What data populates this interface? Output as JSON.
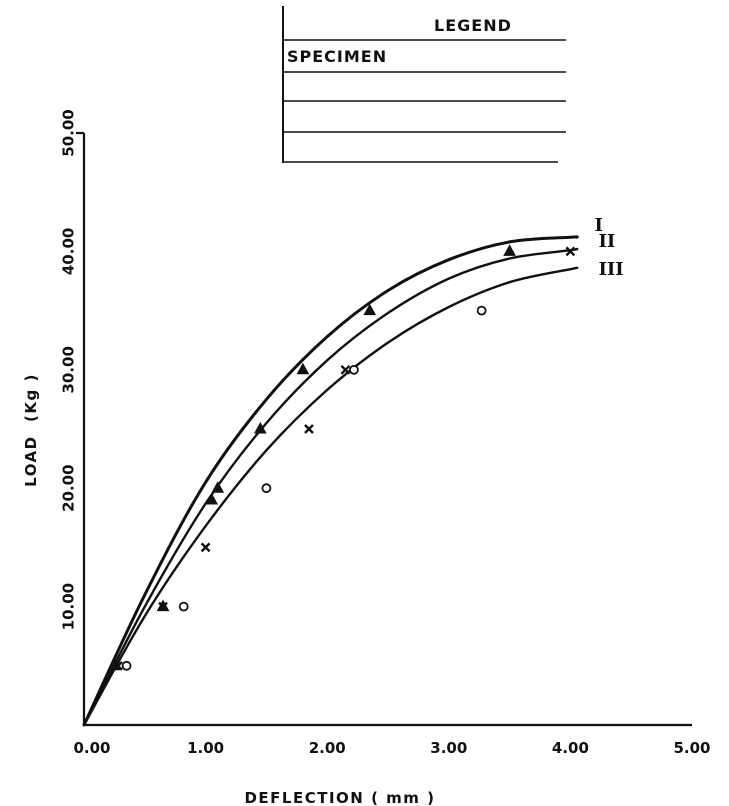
{
  "colors": {
    "ink": "#111111",
    "background": "#ffffff"
  },
  "chart_data": {
    "type": "line",
    "title": "",
    "xlabel": "DEFLECTION ( mm )",
    "ylabel": "LOAD  (Kg )",
    "xlim": [
      0,
      5
    ],
    "ylim": [
      0,
      50
    ],
    "x_ticks": [
      "0.00",
      "1.00",
      "2.00",
      "3.00",
      "4.00",
      "5.00"
    ],
    "y_ticks": [
      "10.00",
      "20.00",
      "30.00",
      "40.00",
      "50.00"
    ],
    "grid": false,
    "legend": {
      "placement": "top-center",
      "title": "LEGEND",
      "header": "SPECIMEN",
      "empty_rows": 3
    },
    "series": [
      {
        "name": "I",
        "marker": "triangle-filled",
        "curve": {
          "x": [
            0,
            0.5,
            1.0,
            1.5,
            2.0,
            2.5,
            3.0,
            3.5,
            4.0,
            4.05
          ],
          "y": [
            0,
            11,
            20.5,
            27.5,
            32.8,
            36.7,
            39.3,
            40.8,
            41.2,
            41.2
          ]
        },
        "points": {
          "x": [
            0.25,
            0.65,
            1.05,
            1.1,
            1.45,
            1.8,
            2.35,
            3.5
          ],
          "y": [
            5,
            10,
            19,
            20,
            25,
            30,
            35,
            40
          ]
        }
      },
      {
        "name": "II",
        "marker": "cross",
        "curve": {
          "x": [
            0,
            0.5,
            1.0,
            1.5,
            2.0,
            2.5,
            3.0,
            3.5,
            4.0,
            4.05
          ],
          "y": [
            0,
            10,
            18.7,
            25.5,
            30.8,
            34.8,
            37.7,
            39.4,
            40.1,
            40.2
          ]
        },
        "points": {
          "x": [
            0.28,
            0.65,
            1.0,
            1.85,
            2.15,
            4.0
          ],
          "y": [
            5,
            10,
            15,
            25,
            30,
            40
          ]
        }
      },
      {
        "name": "III",
        "marker": "circle-open",
        "curve": {
          "x": [
            0,
            0.5,
            1.0,
            1.5,
            2.0,
            2.5,
            3.0,
            3.5,
            4.0,
            4.05
          ],
          "y": [
            0,
            9.2,
            16.8,
            23.2,
            28.3,
            32.3,
            35.3,
            37.4,
            38.5,
            38.6
          ]
        },
        "points": {
          "x": [
            0.35,
            0.82,
            1.5,
            2.22,
            3.27
          ],
          "y": [
            5,
            10,
            20,
            30,
            35
          ]
        }
      }
    ]
  }
}
